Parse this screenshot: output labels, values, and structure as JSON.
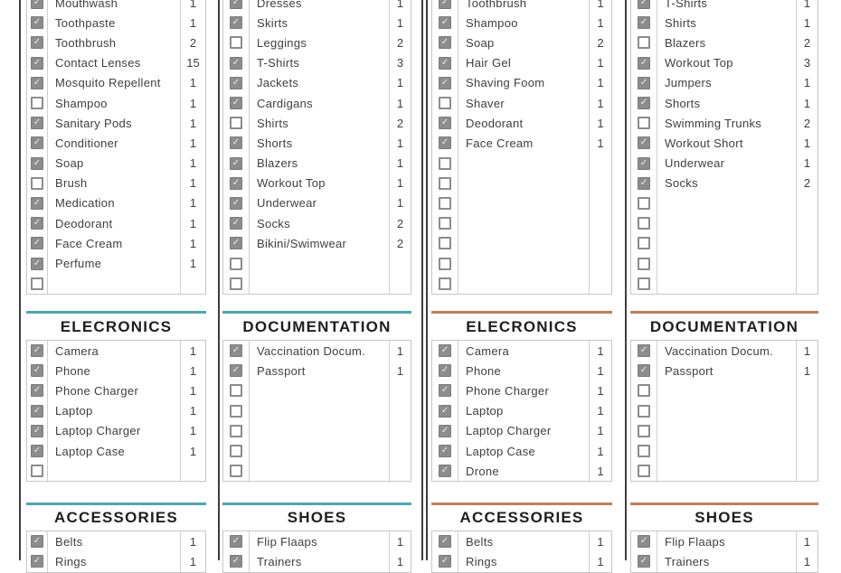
{
  "colors": {
    "teal": "#4BA7B5",
    "orange": "#C57E55",
    "cut_line": "#3D3D3D",
    "table_border": "#C7C7C7",
    "checkbox_gray": "#8C8C8C",
    "item_text": "#3E3E3E",
    "header_text": "#1E1E1E"
  },
  "icons": {
    "check": "✓"
  },
  "columns": [
    {
      "accent": "teal",
      "top_rows": [
        {
          "checked": true,
          "label": "Mouthwash",
          "qty": "1"
        },
        {
          "checked": true,
          "label": "Toothpaste",
          "qty": "1"
        },
        {
          "checked": true,
          "label": "Toothbrush",
          "qty": "2"
        },
        {
          "checked": true,
          "label": "Contact Lenses",
          "qty": "15"
        },
        {
          "checked": true,
          "label": "Mosquito Repellent",
          "qty": "1"
        },
        {
          "checked": false,
          "label": "Shampoo",
          "qty": "1"
        },
        {
          "checked": true,
          "label": "Sanitary Pods",
          "qty": "1"
        },
        {
          "checked": true,
          "label": "Conditioner",
          "qty": "1"
        },
        {
          "checked": true,
          "label": "Soap",
          "qty": "1"
        },
        {
          "checked": false,
          "label": "Brush",
          "qty": "1"
        },
        {
          "checked": true,
          "label": "Medication",
          "qty": "1"
        },
        {
          "checked": true,
          "label": "Deodorant",
          "qty": "1"
        },
        {
          "checked": true,
          "label": "Face Cream",
          "qty": "1"
        },
        {
          "checked": true,
          "label": "Perfume",
          "qty": "1"
        },
        {
          "checked": false,
          "label": "",
          "qty": ""
        }
      ],
      "mid_header": "ELECRONICS",
      "mid_rows": [
        {
          "checked": true,
          "label": "Camera",
          "qty": "1"
        },
        {
          "checked": true,
          "label": "Phone",
          "qty": "1"
        },
        {
          "checked": true,
          "label": "Phone Charger",
          "qty": "1"
        },
        {
          "checked": true,
          "label": "Laptop",
          "qty": "1"
        },
        {
          "checked": true,
          "label": "Laptop Charger",
          "qty": "1"
        },
        {
          "checked": true,
          "label": "Laptop Case",
          "qty": "1"
        },
        {
          "checked": false,
          "label": "",
          "qty": ""
        }
      ],
      "bottom_header": "ACCESSORIES",
      "bottom_rows": [
        {
          "checked": true,
          "label": "Belts",
          "qty": "1"
        },
        {
          "checked": true,
          "label": "Rings",
          "qty": "1"
        }
      ]
    },
    {
      "accent": "teal",
      "top_rows": [
        {
          "checked": true,
          "label": "Dresses",
          "qty": "1"
        },
        {
          "checked": true,
          "label": "Skirts",
          "qty": "1"
        },
        {
          "checked": false,
          "label": "Leggings",
          "qty": "2"
        },
        {
          "checked": true,
          "label": "T-Shirts",
          "qty": "3"
        },
        {
          "checked": true,
          "label": "Jackets",
          "qty": "1"
        },
        {
          "checked": true,
          "label": "Cardigans",
          "qty": "1"
        },
        {
          "checked": false,
          "label": "Shirts",
          "qty": "2"
        },
        {
          "checked": true,
          "label": "Shorts",
          "qty": "1"
        },
        {
          "checked": true,
          "label": "Blazers",
          "qty": "1"
        },
        {
          "checked": true,
          "label": "Workout Top",
          "qty": "1"
        },
        {
          "checked": true,
          "label": "Underwear",
          "qty": "1"
        },
        {
          "checked": true,
          "label": "Socks",
          "qty": "2"
        },
        {
          "checked": true,
          "label": "Bikini/Swimwear",
          "qty": "2"
        },
        {
          "checked": false,
          "label": "",
          "qty": ""
        },
        {
          "checked": false,
          "label": "",
          "qty": ""
        }
      ],
      "mid_header": "DOCUMENTATION",
      "mid_rows": [
        {
          "checked": true,
          "label": "Vaccination Docum.",
          "qty": "1"
        },
        {
          "checked": true,
          "label": "Passport",
          "qty": "1"
        },
        {
          "checked": false,
          "label": "",
          "qty": ""
        },
        {
          "checked": false,
          "label": "",
          "qty": ""
        },
        {
          "checked": false,
          "label": "",
          "qty": ""
        },
        {
          "checked": false,
          "label": "",
          "qty": ""
        },
        {
          "checked": false,
          "label": "",
          "qty": ""
        }
      ],
      "bottom_header": "SHOES",
      "bottom_rows": [
        {
          "checked": true,
          "label": "Flip Flaaps",
          "qty": "1"
        },
        {
          "checked": true,
          "label": "Trainers",
          "qty": "1"
        }
      ]
    },
    {
      "accent": "orange",
      "top_rows": [
        {
          "checked": true,
          "label": "Toothbrush",
          "qty": "1"
        },
        {
          "checked": true,
          "label": "Shampoo",
          "qty": "1"
        },
        {
          "checked": true,
          "label": "Soap",
          "qty": "2"
        },
        {
          "checked": true,
          "label": "Hair Gel",
          "qty": "1"
        },
        {
          "checked": true,
          "label": "Shaving Foom",
          "qty": "1"
        },
        {
          "checked": false,
          "label": "Shaver",
          "qty": "1"
        },
        {
          "checked": true,
          "label": "Deodorant",
          "qty": "1"
        },
        {
          "checked": true,
          "label": "Face Cream",
          "qty": "1"
        },
        {
          "checked": false,
          "label": "",
          "qty": ""
        },
        {
          "checked": false,
          "label": "",
          "qty": ""
        },
        {
          "checked": false,
          "label": "",
          "qty": ""
        },
        {
          "checked": false,
          "label": "",
          "qty": ""
        },
        {
          "checked": false,
          "label": "",
          "qty": ""
        },
        {
          "checked": false,
          "label": "",
          "qty": ""
        },
        {
          "checked": false,
          "label": "",
          "qty": ""
        }
      ],
      "mid_header": "ELECRONICS",
      "mid_rows": [
        {
          "checked": true,
          "label": "Camera",
          "qty": "1"
        },
        {
          "checked": true,
          "label": "Phone",
          "qty": "1"
        },
        {
          "checked": true,
          "label": "Phone Charger",
          "qty": "1"
        },
        {
          "checked": true,
          "label": "Laptop",
          "qty": "1"
        },
        {
          "checked": true,
          "label": "Laptop Charger",
          "qty": "1"
        },
        {
          "checked": true,
          "label": "Laptop Case",
          "qty": "1"
        },
        {
          "checked": true,
          "label": "Drone",
          "qty": "1"
        }
      ],
      "bottom_header": "ACCESSORIES",
      "bottom_rows": [
        {
          "checked": true,
          "label": "Belts",
          "qty": "1"
        },
        {
          "checked": true,
          "label": "Rings",
          "qty": "1"
        }
      ]
    },
    {
      "accent": "orange",
      "top_rows": [
        {
          "checked": true,
          "label": "T-Shirts",
          "qty": "1"
        },
        {
          "checked": true,
          "label": "Shirts",
          "qty": "1"
        },
        {
          "checked": false,
          "label": "Blazers",
          "qty": "2"
        },
        {
          "checked": true,
          "label": "Workout Top",
          "qty": "3"
        },
        {
          "checked": true,
          "label": "Jumpers",
          "qty": "1"
        },
        {
          "checked": true,
          "label": "Shorts",
          "qty": "1"
        },
        {
          "checked": false,
          "label": "Swimming Trunks",
          "qty": "2"
        },
        {
          "checked": true,
          "label": "Workout Short",
          "qty": "1"
        },
        {
          "checked": true,
          "label": "Underwear",
          "qty": "1"
        },
        {
          "checked": true,
          "label": "Socks",
          "qty": "2"
        },
        {
          "checked": false,
          "label": "",
          "qty": ""
        },
        {
          "checked": false,
          "label": "",
          "qty": ""
        },
        {
          "checked": false,
          "label": "",
          "qty": ""
        },
        {
          "checked": false,
          "label": "",
          "qty": ""
        },
        {
          "checked": false,
          "label": "",
          "qty": ""
        }
      ],
      "mid_header": "DOCUMENTATION",
      "mid_rows": [
        {
          "checked": true,
          "label": "Vaccination Docum.",
          "qty": "1"
        },
        {
          "checked": true,
          "label": "Passport",
          "qty": "1"
        },
        {
          "checked": false,
          "label": "",
          "qty": ""
        },
        {
          "checked": false,
          "label": "",
          "qty": ""
        },
        {
          "checked": false,
          "label": "",
          "qty": ""
        },
        {
          "checked": false,
          "label": "",
          "qty": ""
        },
        {
          "checked": false,
          "label": "",
          "qty": ""
        }
      ],
      "bottom_header": "SHOES",
      "bottom_rows": [
        {
          "checked": true,
          "label": "Flip Flaaps",
          "qty": "1"
        },
        {
          "checked": true,
          "label": "Trainers",
          "qty": "1"
        }
      ]
    }
  ]
}
